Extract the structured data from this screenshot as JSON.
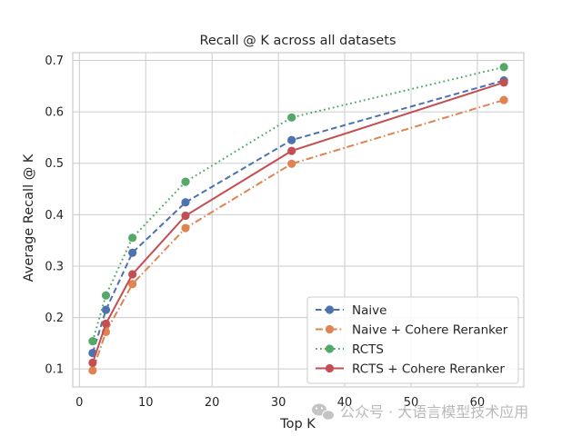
{
  "chart_data": {
    "type": "line",
    "title": "Recall @ K across all datasets",
    "xlabel": "Top K",
    "ylabel": "Average Recall @ K",
    "xlim": [
      -1,
      67
    ],
    "ylim": [
      0.065,
      0.715
    ],
    "xticks": [
      0,
      10,
      20,
      30,
      40,
      50,
      60
    ],
    "yticks": [
      0.1,
      0.2,
      0.3,
      0.4,
      0.5,
      0.6,
      0.7
    ],
    "grid": true,
    "legend_position": "lower-right",
    "x": [
      2,
      4,
      8,
      16,
      32,
      64
    ],
    "series": [
      {
        "name": "Naive",
        "color": "#4c72b0",
        "dash": "dashed",
        "values": [
          0.131,
          0.215,
          0.326,
          0.424,
          0.545,
          0.661
        ]
      },
      {
        "name": "Naive + Cohere Reranker",
        "color": "#dd8452",
        "dash": "dashdot",
        "values": [
          0.097,
          0.172,
          0.265,
          0.374,
          0.499,
          0.623
        ]
      },
      {
        "name": "RCTS",
        "color": "#55a868",
        "dash": "dotted",
        "values": [
          0.154,
          0.243,
          0.355,
          0.464,
          0.589,
          0.687
        ]
      },
      {
        "name": "RCTS + Cohere Reranker",
        "color": "#c44e52",
        "dash": "solid",
        "values": [
          0.112,
          0.188,
          0.284,
          0.398,
          0.524,
          0.657
        ]
      }
    ]
  },
  "watermark": {
    "icon": "wechat-icon",
    "text": "公众号 · 大语言模型技术应用"
  }
}
